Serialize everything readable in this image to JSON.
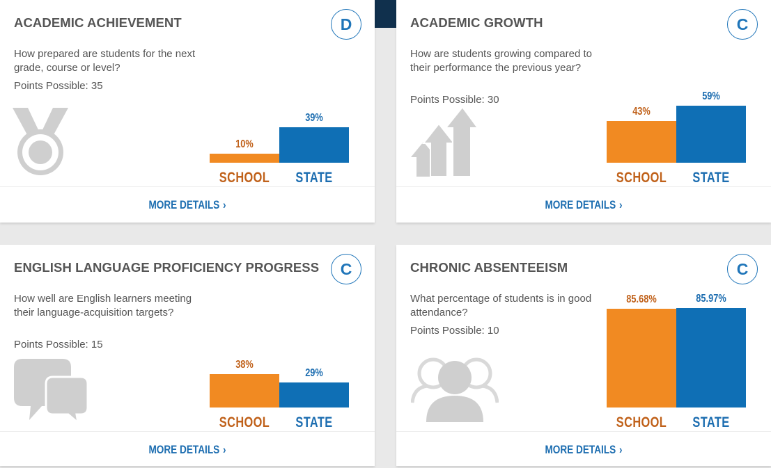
{
  "cards": [
    {
      "title": "ACADEMIC ACHIEVEMENT",
      "grade": "D",
      "question": "How prepared are students for the next grade, course or level?",
      "points": "Points Possible: 35",
      "icon": "medal-icon",
      "school_label": "SCHOOL",
      "state_label": "STATE",
      "school_pct": "10%",
      "state_pct": "39%",
      "school_value": 10,
      "state_value": 39,
      "more": "MORE DETAILS",
      "chevron": "›"
    },
    {
      "title": "ACADEMIC GROWTH",
      "grade": "C",
      "question": "How are students growing compared to their performance the previous year?",
      "points": "Points Possible: 30",
      "icon": "growth-arrows-icon",
      "school_label": "SCHOOL",
      "state_label": "STATE",
      "school_pct": "43%",
      "state_pct": "59%",
      "school_value": 43,
      "state_value": 59,
      "more": "MORE DETAILS",
      "chevron": "›"
    },
    {
      "title": "ENGLISH LANGUAGE PROFICIENCY PROGRESS",
      "grade": "C",
      "question": "How well are English learners meeting their language-acquisition targets?",
      "points": "Points Possible: 15",
      "icon": "chat-bubbles-icon",
      "school_label": "SCHOOL",
      "state_label": "STATE",
      "school_pct": "38%",
      "state_pct": "29%",
      "school_value": 38,
      "state_value": 29,
      "more": "MORE DETAILS",
      "chevron": "›"
    },
    {
      "title": "CHRONIC ABSENTEEISM",
      "grade": "C",
      "question": "What percentage of students is in good attendance?",
      "points": "Points Possible: 10",
      "icon": "people-icon",
      "school_label": "SCHOOL",
      "state_label": "STATE",
      "school_pct": "85.68%",
      "state_pct": "85.97%",
      "school_value": 85.68,
      "state_value": 85.97,
      "more": "MORE DETAILS",
      "chevron": "›"
    }
  ],
  "colors": {
    "school": "#f18a22",
    "state": "#0f6fb5",
    "accent": "#1c6db0",
    "grade_ring": "#1f75b9"
  }
}
